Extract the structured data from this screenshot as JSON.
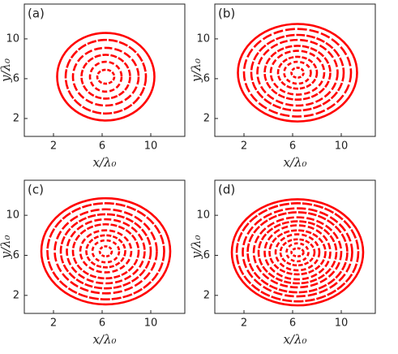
{
  "chart_data": [
    {
      "type": "rings",
      "panel_label": "(a)",
      "xlabel": "x/λ₀",
      "ylabel": "y/λ₀",
      "xlim": [
        -0.4,
        12.8
      ],
      "ylim": [
        0.2,
        13.5
      ],
      "xticks": [
        2,
        6,
        10
      ],
      "yticks": [
        2,
        6,
        10
      ],
      "color": "#ff0000",
      "center": [
        6.3,
        6.2
      ],
      "rx": [
        0.7,
        1.3,
        2.0,
        2.7,
        3.3,
        4.0
      ],
      "ry": [
        0.7,
        1.5,
        2.2,
        2.9,
        3.7,
        4.4
      ]
    },
    {
      "type": "rings",
      "panel_label": "(b)",
      "xlabel": "x/λ₀",
      "ylabel": "y/λ₀",
      "xlim": [
        -0.4,
        12.8
      ],
      "ylim": [
        0.2,
        13.5
      ],
      "xticks": [
        2,
        6,
        10
      ],
      "yticks": [
        2,
        6,
        10
      ],
      "color": "#ff0000",
      "center": [
        6.4,
        6.6
      ],
      "rx": [
        0.5,
        1.1,
        1.6,
        2.2,
        2.7,
        3.3,
        3.8,
        4.4,
        4.9
      ],
      "ry": [
        0.5,
        1.1,
        1.6,
        2.2,
        2.7,
        3.3,
        3.8,
        4.4,
        4.9
      ]
    },
    {
      "type": "rings",
      "panel_label": "(c)",
      "xlabel": "x/λ₀",
      "ylabel": "y/λ₀",
      "xlim": [
        -0.4,
        12.8
      ],
      "ylim": [
        0.2,
        13.5
      ],
      "xticks": [
        2,
        6,
        10
      ],
      "yticks": [
        2,
        6,
        10
      ],
      "color": "#ff0000",
      "center": [
        6.3,
        6.4
      ],
      "rx": [
        0.5,
        1.1,
        1.6,
        2.1,
        2.7,
        3.2,
        3.7,
        4.2,
        4.8,
        5.3
      ],
      "ry": [
        0.5,
        1.1,
        1.6,
        2.1,
        2.7,
        3.2,
        3.7,
        4.2,
        4.8,
        5.3
      ]
    },
    {
      "type": "rings",
      "panel_label": "(d)",
      "xlabel": "x/λ₀",
      "ylabel": "y/λ₀",
      "xlim": [
        -0.4,
        12.8
      ],
      "ylim": [
        0.2,
        13.5
      ],
      "xticks": [
        2,
        6,
        10
      ],
      "yticks": [
        2,
        6,
        10
      ],
      "color": "#ff0000",
      "center": [
        6.4,
        6.3
      ],
      "rx": [
        0.5,
        0.9,
        1.4,
        1.8,
        2.3,
        2.7,
        3.2,
        3.6,
        4.1,
        4.5,
        5.0,
        5.4
      ],
      "ry": [
        0.4,
        0.9,
        1.3,
        1.8,
        2.2,
        2.7,
        3.1,
        3.5,
        4.0,
        4.4,
        4.9,
        5.3
      ]
    }
  ]
}
